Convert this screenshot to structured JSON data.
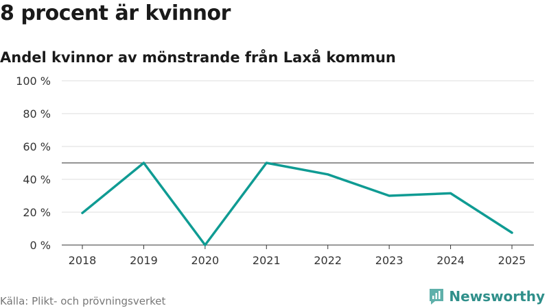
{
  "header": {
    "title": "8 procent är kvinnor",
    "subtitle": "Andel kvinnor av mönstrande från Laxå kommun"
  },
  "footer": {
    "source": "Källa: Plikt- och prövningsverket",
    "brand": "Newsworthy",
    "brand_icon": "newsworthy-logo-icon"
  },
  "colors": {
    "line": "#0f9b93",
    "reference": "#555555",
    "grid": "#dddddd",
    "brand": "#2f8f8a"
  },
  "chart_data": {
    "type": "line",
    "title": "8 procent är kvinnor",
    "subtitle": "Andel kvinnor av mönstrande från Laxå kommun",
    "xlabel": "",
    "ylabel": "",
    "categories": [
      "2018",
      "2019",
      "2020",
      "2021",
      "2022",
      "2023",
      "2024",
      "2025"
    ],
    "series": [
      {
        "values": [
          19.5,
          50,
          0,
          50,
          43,
          30,
          31.5,
          7.5
        ]
      }
    ],
    "ylim": [
      0,
      100
    ],
    "yticks": [
      0,
      20,
      40,
      60,
      80,
      100
    ],
    "ytick_labels": [
      "0 %",
      "20 %",
      "40 %",
      "60 %",
      "80 %",
      "100 %"
    ],
    "reference_line": 50,
    "grid": true,
    "legend": "none"
  }
}
